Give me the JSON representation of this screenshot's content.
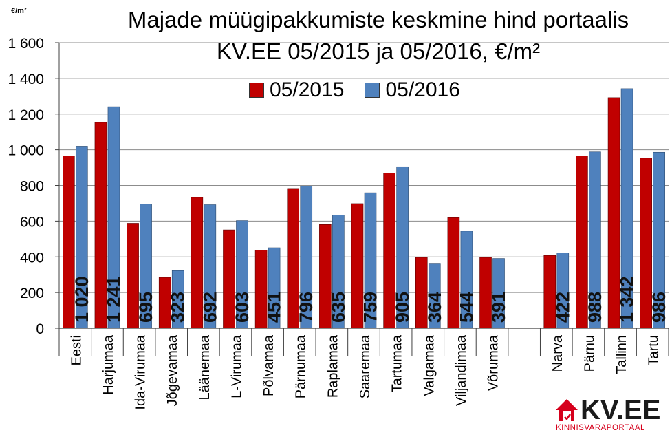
{
  "unit_label": "€/m²",
  "logo": {
    "brand": "KV.EE",
    "tagline": "KINNISVARAPORTAAL"
  },
  "colors": {
    "series_2015": "#c00000",
    "series_2016": "#4f81bd",
    "grid": "#8c8c8c",
    "axis": "#404040"
  },
  "chart_data": {
    "type": "bar",
    "title": "Majade müügipakkumiste keskmine hind portaalis KV.EE 05/2015 ja 05/2016, €/m²",
    "title_lines": [
      "Majade müügipakkumiste keskmine hind portaalis",
      "KV.EE 05/2015 ja 05/2016, €/m²"
    ],
    "ylim": [
      0,
      1600
    ],
    "yticks": [
      0,
      200,
      400,
      600,
      800,
      1000,
      1200,
      1400,
      1600
    ],
    "ytick_labels": [
      "0",
      "200",
      "400",
      "600",
      "800",
      "1 000",
      "1 200",
      "1 400",
      "1 600"
    ],
    "grid": true,
    "legend_position": "top",
    "categories": [
      "Eesti",
      "Harjumaa",
      "Ida-Virumaa",
      "Jõgevamaa",
      "Läänemaa",
      "L-Virumaa",
      "Põlvamaa",
      "Pärnumaa",
      "Raplamaa",
      "Saaremaa",
      "Tartumaa",
      "Valgamaa",
      "Viljandimaa",
      "Võrumaa",
      "",
      "Narva",
      "Pärnu",
      "Tallinn",
      "Tartu"
    ],
    "series": [
      {
        "name": "05/2015",
        "values": [
          965,
          1153,
          588,
          285,
          733,
          551,
          438,
          783,
          581,
          698,
          870,
          397,
          620,
          397,
          null,
          408,
          965,
          1292,
          953
        ]
      },
      {
        "name": "05/2016",
        "values": [
          1020,
          1241,
          695,
          323,
          692,
          603,
          451,
          796,
          635,
          759,
          905,
          364,
          544,
          391,
          null,
          422,
          988,
          1342,
          986
        ],
        "data_labels": [
          "1 020",
          "1 241",
          "695",
          "323",
          "692",
          "603",
          "451",
          "796",
          "635",
          "759",
          "905",
          "364",
          "544",
          "391",
          "",
          "422",
          "988",
          "1 342",
          "986"
        ]
      }
    ]
  }
}
